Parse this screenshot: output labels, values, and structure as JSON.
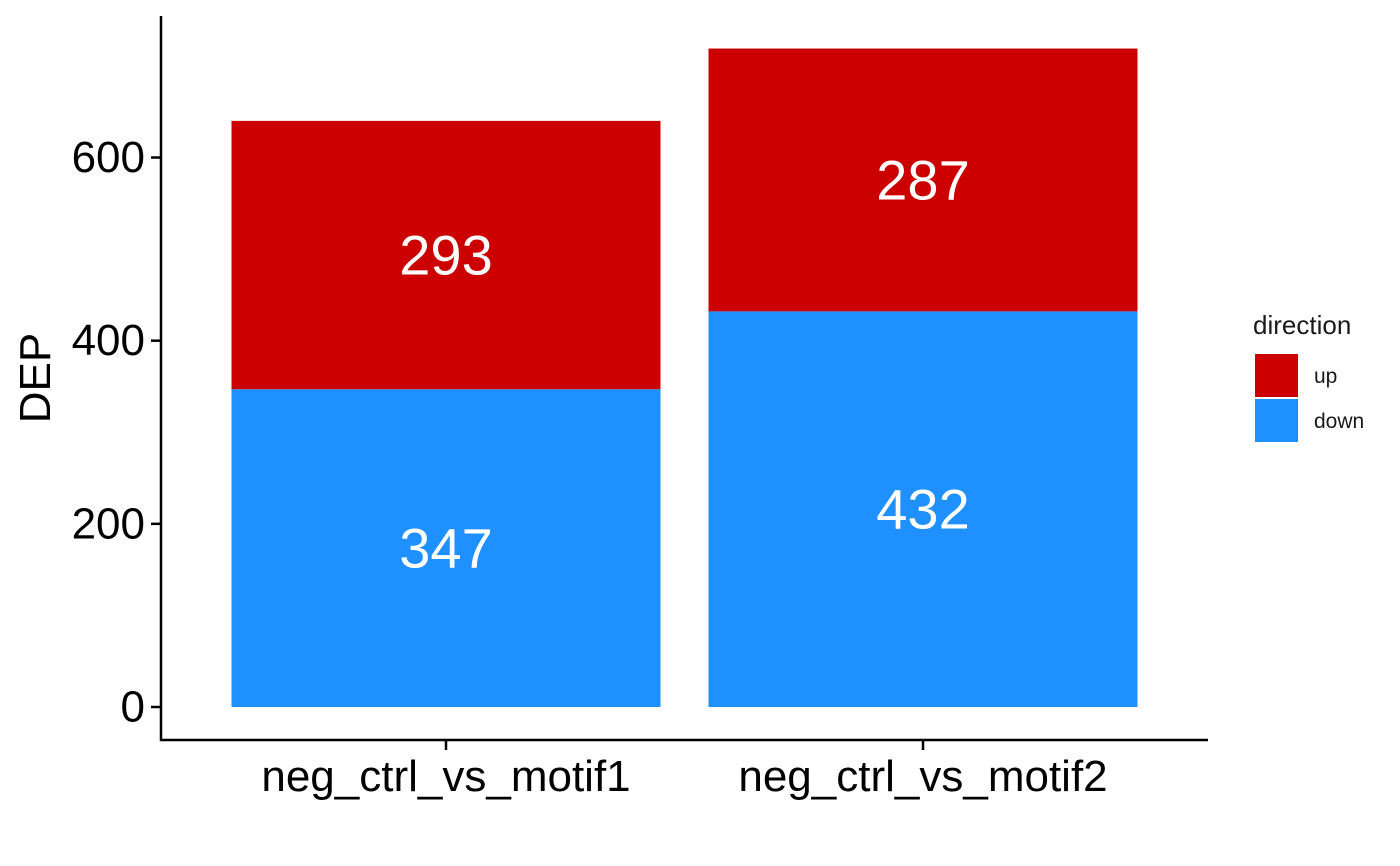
{
  "chart_data": {
    "type": "bar",
    "stacked": true,
    "categories": [
      "neg_ctrl_vs_motif1",
      "neg_ctrl_vs_motif2"
    ],
    "series": [
      {
        "name": "down",
        "values": [
          347,
          432
        ],
        "color": "#1E90FF"
      },
      {
        "name": "up",
        "values": [
          293,
          287
        ],
        "color": "#CC0000"
      }
    ],
    "title": "",
    "xlabel": "",
    "ylabel": "DEP",
    "ylim": [
      0,
      700
    ],
    "yticks": [
      0,
      200,
      400,
      600
    ],
    "ytick_labels": [
      "0",
      "200",
      "400",
      "600"
    ],
    "grid": false,
    "legend": {
      "title": "direction",
      "placement": "right",
      "entries": [
        {
          "label": "up",
          "color": "#CC0000"
        },
        {
          "label": "down",
          "color": "#1E90FF"
        }
      ]
    }
  }
}
